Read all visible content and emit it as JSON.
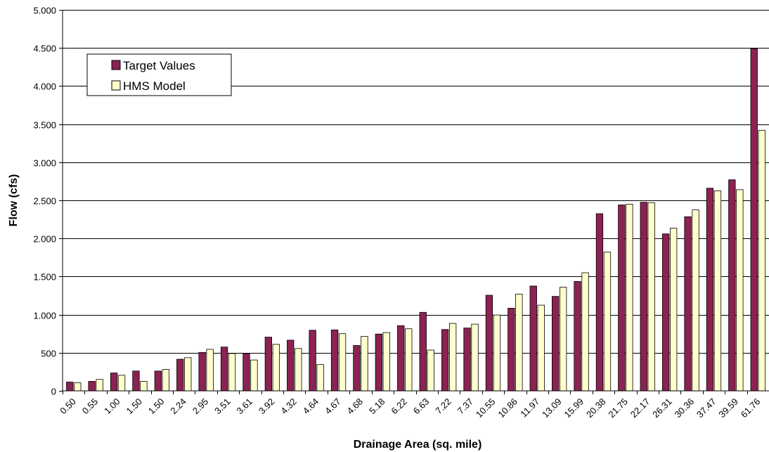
{
  "chart_data": {
    "type": "bar",
    "title": "",
    "xlabel": "Drainage Area (sq. mile)",
    "ylabel": "Flow (cfs)",
    "ylim": [
      0,
      5000
    ],
    "yticks": [
      0,
      500,
      1000,
      1500,
      2000,
      2500,
      3000,
      3500,
      4000,
      4500,
      5000
    ],
    "ytick_labels": [
      "0",
      "500",
      "1.000",
      "1.500",
      "2.000",
      "2.500",
      "3.000",
      "3.500",
      "4.000",
      "4.500",
      "5.000"
    ],
    "grid": true,
    "legend_position": "top-left",
    "categories": [
      "0.50",
      "0.55",
      "1.00",
      "1.50",
      "1.50",
      "2.24",
      "2.95",
      "3.51",
      "3.61",
      "3.92",
      "4.32",
      "4.64",
      "4.67",
      "4.68",
      "5.18",
      "6.22",
      "6.63",
      "7.22",
      "7.37",
      "10.55",
      "10.86",
      "11.97",
      "13.09",
      "15.99",
      "20.38",
      "21.75",
      "22.17",
      "26.31",
      "30.36",
      "37.47",
      "39.59",
      "61.76"
    ],
    "series": [
      {
        "name": "Target Values",
        "color": "#8b2252",
        "values": [
          115,
          125,
          235,
          260,
          260,
          415,
          505,
          575,
          490,
          705,
          665,
          795,
          800,
          595,
          745,
          855,
          1030,
          805,
          825,
          1255,
          1085,
          1375,
          1240,
          1435,
          2325,
          2440,
          2475,
          2060,
          2285,
          2660,
          2770,
          4490
        ]
      },
      {
        "name": "HMS Model",
        "color": "#ffffcc",
        "values": [
          105,
          150,
          205,
          125,
          280,
          435,
          545,
          490,
          405,
          610,
          555,
          345,
          750,
          715,
          765,
          815,
          535,
          885,
          875,
          995,
          1270,
          1125,
          1360,
          1550,
          1820,
          2450,
          2470,
          2135,
          2375,
          2625,
          2640,
          3420
        ]
      }
    ]
  }
}
